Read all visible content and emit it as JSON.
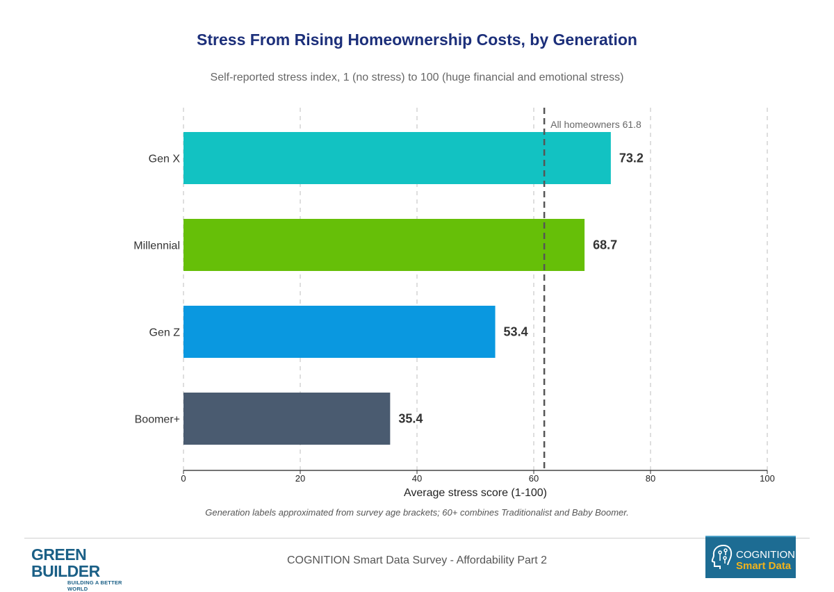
{
  "header": {
    "title": "Stress From Rising Homeownership Costs, by Generation",
    "subtitle": "Self-reported stress index, 1 (no stress) to 100 (huge financial and emotional stress)"
  },
  "chart_data": {
    "type": "bar",
    "orientation": "horizontal",
    "categories": [
      "Gen X",
      "Millennial",
      "Gen Z",
      "Boomer+"
    ],
    "values": [
      73.2,
      68.7,
      53.4,
      35.4
    ],
    "value_labels": [
      "73.2",
      "68.7",
      "53.4",
      "35.4"
    ],
    "colors": [
      "#12c2c2",
      "#66bf08",
      "#0a98e0",
      "#4a5b70"
    ],
    "xlabel": "Average stress score (1-100)",
    "ylabel": "",
    "xlim": [
      0,
      100
    ],
    "xticks": [
      0,
      20,
      40,
      60,
      80,
      100
    ],
    "grid": "vertical dashed",
    "reference_line": {
      "value": 61.8,
      "label": "All homeowners 61.8"
    }
  },
  "note": "Generation labels approximated from survey age brackets; 60+ combines Traditionalist and Baby Boomer.",
  "footer": {
    "source": "COGNITION Smart Data Survey - Affordability Part 2",
    "left_logo": {
      "name": "GREEN BUILDER",
      "tagline": "BUILDING A BETTER WORLD"
    },
    "right_logo": {
      "word1": "COGNITION",
      "word2": "Smart Data",
      "icon": "brain-circuit-icon"
    }
  }
}
